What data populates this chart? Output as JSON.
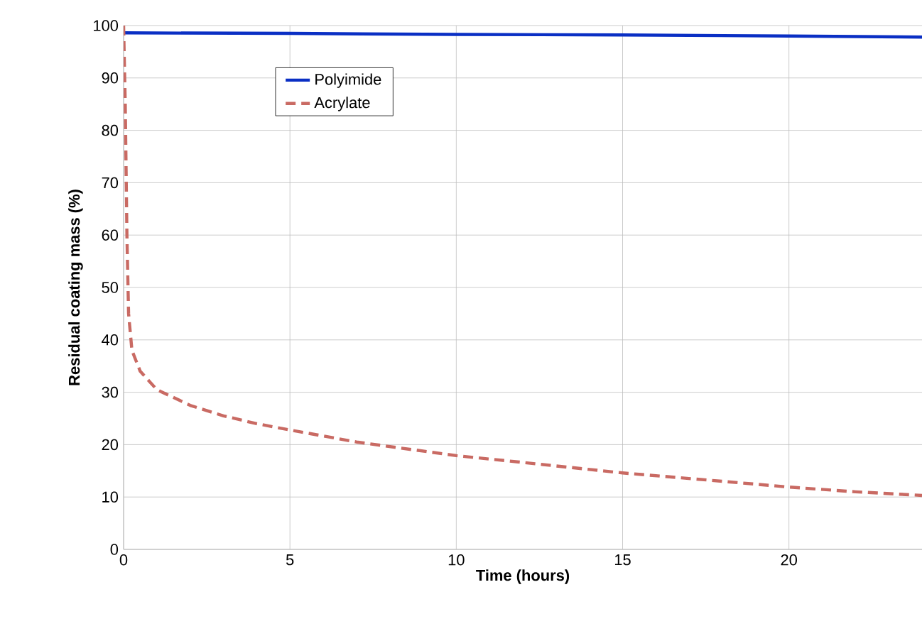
{
  "chart_data": {
    "type": "line",
    "xlabel": "Time (hours)",
    "ylabel": "Residual coating mass (%)",
    "xlim": [
      0,
      24
    ],
    "ylim": [
      0,
      100
    ],
    "xticks": [
      0,
      5,
      10,
      15,
      20
    ],
    "yticks": [
      0,
      10,
      20,
      30,
      40,
      50,
      60,
      70,
      80,
      90,
      100
    ],
    "grid": true,
    "legend": "top left",
    "marker": "none",
    "series": [
      {
        "name": "Polyimide",
        "color": "#0a2fc4",
        "line_style": "solid",
        "x": [
          0,
          5,
          10,
          15,
          20,
          24
        ],
        "values": [
          98.6,
          98.5,
          98.3,
          98.2,
          98.0,
          97.8
        ]
      },
      {
        "name": "Acrylate",
        "color": "#c96a63",
        "line_style": "dashed",
        "x": [
          0,
          0.05,
          0.1,
          0.15,
          0.25,
          0.5,
          1,
          2,
          3,
          4,
          5,
          7,
          10,
          12,
          15,
          18,
          20,
          22,
          24
        ],
        "values": [
          100,
          85,
          60,
          45,
          38,
          34,
          30.5,
          27.5,
          25.5,
          24,
          22.8,
          20.5,
          17.9,
          16.6,
          14.6,
          13,
          11.9,
          11,
          10.3
        ]
      }
    ]
  }
}
